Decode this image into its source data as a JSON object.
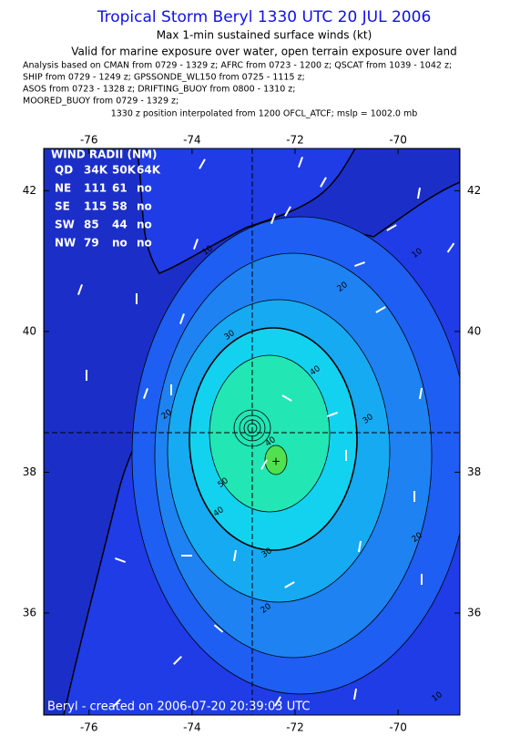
{
  "header": {
    "title": "Tropical Storm Beryl 1330 UTC 20 JUL 2006",
    "subtitle": "Max 1-min sustained surface winds (kt)",
    "validity": "Valid for marine exposure over water, open terrain exposure over land",
    "analysis": [
      "Analysis based on  CMAN from 0729 - 1329 z;  AFRC from 0723 - 1200 z;  QSCAT from 1039 - 1042 z;",
      "SHIP from 0729 - 1249 z;  GPSSONDE_WL150 from 0725 - 1115 z;",
      "ASOS from 0723 - 1328 z;  DRIFTING_BUOY from 0800 - 1310 z;",
      "MOORED_BUOY from 0729 - 1329 z;"
    ],
    "position_note": "1330 z position interpolated from 1200 OFCL_ATCF; mslp = 1002.0 mb"
  },
  "map": {
    "xlim": [
      -76.88,
      -68.8
    ],
    "ylim": [
      34.55,
      42.6
    ],
    "xticks": [
      -76,
      -74,
      -72,
      -70
    ],
    "yticks": [
      36,
      38,
      40,
      42
    ],
    "contour_labels": [
      10,
      10,
      10,
      20,
      20,
      20,
      20,
      30,
      30,
      30,
      40,
      40,
      40,
      50
    ]
  },
  "wind_radii": {
    "title": "WIND RADII (NM)",
    "header": [
      "QD",
      "34K",
      "50K",
      "64K"
    ],
    "rows": [
      [
        "NE",
        111,
        61,
        "no"
      ],
      [
        "SE",
        115,
        58,
        "no"
      ],
      [
        "SW",
        85,
        44,
        "no"
      ],
      [
        "NW",
        79,
        "no",
        "no"
      ]
    ]
  },
  "footer": "Beryl - created on 2006-07-20 20:39:03 UTC"
}
